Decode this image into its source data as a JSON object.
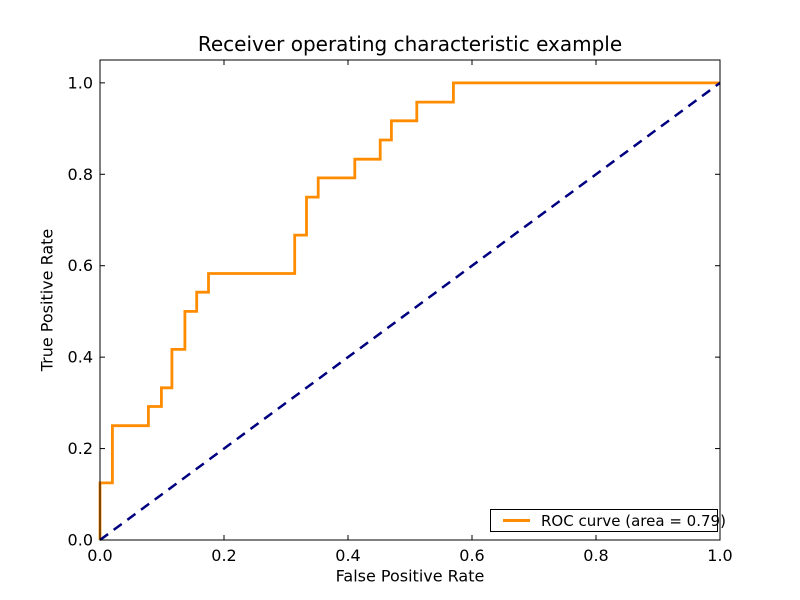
{
  "figure": {
    "title": "Receiver operating characteristic example",
    "xlabel": "False Positive Rate",
    "ylabel": "True Positive Rate",
    "legend_label": "ROC curve (area = 0.79)"
  },
  "colors": {
    "roc_curve": "#ff8c00",
    "chance_line": "#000080",
    "axes": "#000000",
    "background": "#ffffff"
  },
  "chart_data": {
    "type": "line",
    "title": "Receiver operating characteristic example",
    "xlabel": "False Positive Rate",
    "ylabel": "True Positive Rate",
    "xlim": [
      0.0,
      1.0
    ],
    "ylim": [
      0.0,
      1.05
    ],
    "xticks": [
      0.0,
      0.2,
      0.4,
      0.6,
      0.8,
      1.0
    ],
    "yticks": [
      0.0,
      0.2,
      0.4,
      0.6,
      0.8,
      1.0
    ],
    "grid": false,
    "legend_position": "lower right",
    "series": [
      {
        "name": "ROC curve (area = 0.79)",
        "auc": 0.79,
        "color": "#ff8c00",
        "style": "solid",
        "line_width": 2.8,
        "points": [
          [
            0.0,
            0.0
          ],
          [
            0.0,
            0.125
          ],
          [
            0.02,
            0.125
          ],
          [
            0.02,
            0.25
          ],
          [
            0.078,
            0.25
          ],
          [
            0.078,
            0.292
          ],
          [
            0.099,
            0.292
          ],
          [
            0.099,
            0.333
          ],
          [
            0.116,
            0.333
          ],
          [
            0.116,
            0.417
          ],
          [
            0.137,
            0.417
          ],
          [
            0.137,
            0.5
          ],
          [
            0.156,
            0.5
          ],
          [
            0.156,
            0.542
          ],
          [
            0.175,
            0.542
          ],
          [
            0.175,
            0.583
          ],
          [
            0.314,
            0.583
          ],
          [
            0.314,
            0.667
          ],
          [
            0.333,
            0.667
          ],
          [
            0.333,
            0.75
          ],
          [
            0.352,
            0.75
          ],
          [
            0.352,
            0.792
          ],
          [
            0.411,
            0.792
          ],
          [
            0.411,
            0.833
          ],
          [
            0.452,
            0.833
          ],
          [
            0.452,
            0.875
          ],
          [
            0.47,
            0.875
          ],
          [
            0.47,
            0.917
          ],
          [
            0.511,
            0.917
          ],
          [
            0.511,
            0.958
          ],
          [
            0.57,
            0.958
          ],
          [
            0.57,
            1.0
          ],
          [
            1.0,
            1.0
          ]
        ]
      },
      {
        "name": "chance-diagonal",
        "color": "#000080",
        "style": "dashed",
        "line_width": 2.5,
        "points": [
          [
            0.0,
            0.0
          ],
          [
            1.0,
            1.0
          ]
        ]
      }
    ]
  }
}
